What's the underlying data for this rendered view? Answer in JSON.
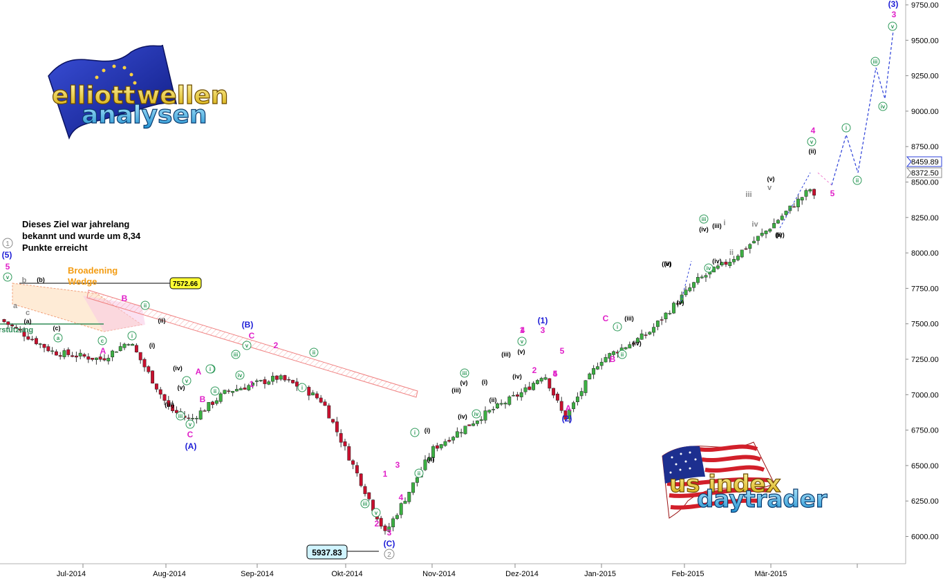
{
  "chart_data": {
    "type": "candlestick",
    "y_axis": {
      "ticks": [
        "9750.00",
        "9500.00",
        "9250.00",
        "9000.00",
        "8750.00",
        "8500.00",
        "8250.00",
        "8000.00",
        "7750.00",
        "7500.00",
        "7250.00",
        "7000.00",
        "6750.00",
        "6500.00",
        "6250.00",
        "6000.00"
      ],
      "ylim": [
        5870,
        9760
      ],
      "current_price": "8459.89",
      "last_close": "8372.50"
    },
    "x_axis": {
      "labels": [
        "Jul-2014",
        "Aug-2014",
        "Sep-2014",
        "Okt-2014",
        "Nov-2014",
        "Dez-2014",
        "Jan-2015",
        "Feb-2015",
        "Mär-2015"
      ]
    },
    "price_labels": {
      "high": "7572.66",
      "low": "5937.83"
    },
    "note": [
      "Dieses Ziel war jahrelang",
      "bekannt und wurde um 8,34",
      "Punkte erreicht"
    ],
    "pattern_label": [
      "Broadening",
      "Wedge"
    ],
    "support_label": "rstützung",
    "price_path": [
      [
        "Jun-2014",
        7530
      ],
      [
        "Jul-2014",
        7300
      ],
      [
        "mid-Jul-2014",
        7250
      ],
      [
        "late-Jul-2014",
        7380
      ],
      [
        "Aug-2014",
        6900
      ],
      [
        "early-Aug-2014",
        6820
      ],
      [
        "mid-Aug-2014",
        7020
      ],
      [
        "Sep-2014",
        7120
      ],
      [
        "mid-Sep-2014",
        7050
      ],
      [
        "Okt-2014",
        6950
      ],
      [
        "mid-Okt-2014",
        6230
      ],
      [
        "mid-Okt-2014",
        6020
      ],
      [
        "Nov-2014",
        6620
      ],
      [
        "mid-Nov-2014",
        6850
      ],
      [
        "Dez-2014",
        7020
      ],
      [
        "early-Dez-2014",
        7150
      ],
      [
        "mid-Dez-2014",
        6830
      ],
      [
        "Jan-2015",
        7240
      ],
      [
        "mid-Jan-2015",
        7430
      ],
      [
        "Feb-2015",
        7800
      ],
      [
        "mid-Feb-2015",
        7950
      ],
      [
        "Mär-2015",
        8150
      ],
      [
        "mid-Mär-2015",
        8450
      ],
      [
        "late-Mär-2015",
        8372
      ]
    ],
    "forecast_path": [
      8372,
      8250,
      8700,
      8350,
      9250,
      8950,
      9600
    ],
    "wave_labels": {
      "blue": [
        "(5)",
        "(A)",
        "(B)",
        "(C)",
        "(1)",
        "(2)",
        "(3)"
      ],
      "magenta": [
        "5",
        "A",
        "B",
        "C",
        "A",
        "B",
        "C",
        "2",
        "1",
        "3",
        "4",
        "1",
        "2",
        "3",
        "4",
        "5",
        "A",
        "B",
        "C",
        "1",
        "2",
        "3",
        "4",
        "5",
        "3",
        "4",
        "5"
      ],
      "black": [
        "(b)",
        "(a)",
        "(c)",
        "(i)",
        "(ii)",
        "(iii)",
        "(iv)",
        "(v)",
        "(i)",
        "(ii)",
        "(iii)",
        "(iv)",
        "(v)",
        "(iii)",
        "(v)",
        "(iv)",
        "(i)",
        "(ii)",
        "(iii)",
        "(iv)",
        "(v)",
        "(iii)",
        "(iv)",
        "(v)",
        "(i)",
        "(ii)",
        "(iii)",
        "(iv)",
        "(v)",
        "(iv)"
      ],
      "grey": [
        "b",
        "a",
        "c",
        "i",
        "ii",
        "iii",
        "iv",
        "v"
      ],
      "green_circled": [
        "i",
        "ii",
        "iii",
        "iv",
        "v",
        "a",
        "c"
      ]
    }
  }
}
